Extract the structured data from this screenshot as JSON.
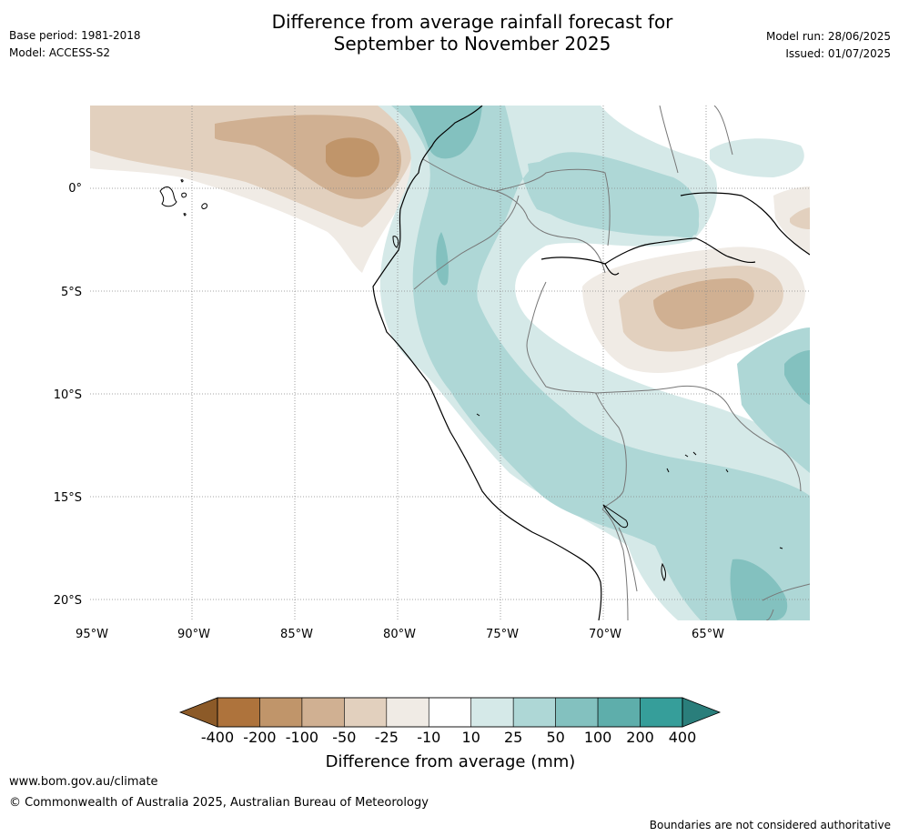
{
  "header": {
    "title_line1": "Difference from average rainfall forecast for",
    "title_line2": "September to November 2025",
    "base_period": "Base period: 1981-2018",
    "model": "Model: ACCESS-S2",
    "model_run": "Model run: 28/06/2025",
    "issued": "Issued: 01/07/2025"
  },
  "map": {
    "lat_labels": [
      "0°",
      "5°S",
      "10°S",
      "15°S",
      "20°S"
    ],
    "lon_labels": [
      "95°W",
      "90°W",
      "85°W",
      "80°W",
      "75°W",
      "70°W",
      "65°W"
    ]
  },
  "colorbar": {
    "title": "Difference from average (mm)",
    "tick_labels": [
      "-400",
      "-200",
      "-100",
      "-50",
      "-25",
      "-10",
      "10",
      "25",
      "50",
      "100",
      "200",
      "400"
    ],
    "colors": [
      "#8c5a28",
      "#ae733c",
      "#c0956a",
      "#d0b092",
      "#e2d0be",
      "#f0ebe5",
      "#ffffff",
      "#d5e9e8",
      "#aed7d6",
      "#83c1bf",
      "#5eaeab",
      "#369e9a",
      "#2a7e7b"
    ]
  },
  "footer": {
    "website": "www.bom.gov.au/climate",
    "copyright": "© Commonwealth of Australia 2025, Australian Bureau of Meteorology",
    "disclaimer": "Boundaries are not considered authoritative"
  }
}
